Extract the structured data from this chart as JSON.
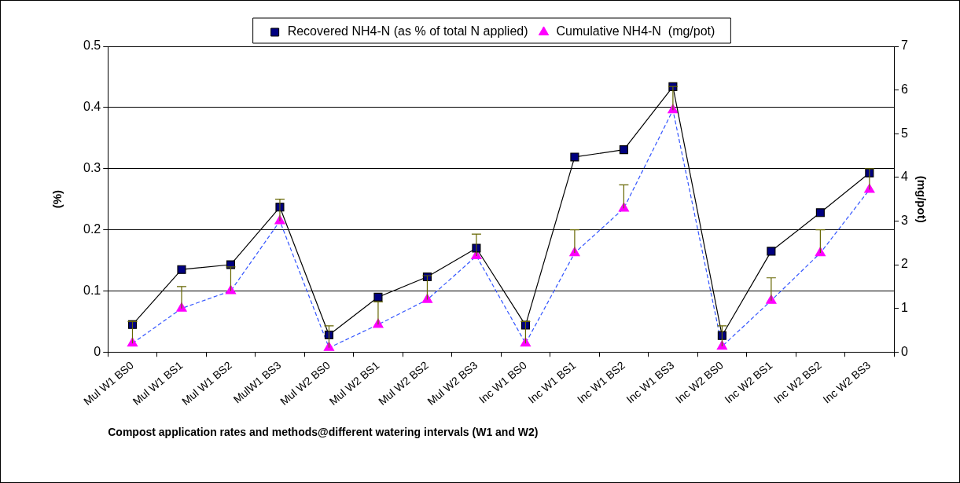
{
  "chart_data": {
    "type": "line",
    "xlabel": "Compost application rates and methods@different watering intervals (W1 and W2)",
    "ylabel": "(%)",
    "y2label": "(mg/pot)",
    "categories": [
      "Mul W1 BS0",
      "Mul W1 BS1",
      "Mul W1 BS2",
      "MulW1 BS3",
      "Mul W2 BS0",
      "Mul W2 BS1",
      "Mul W2 BS2",
      "Mul W2 BS3",
      "Inc W1 BS0",
      "Inc W1 BS1",
      "Inc W1 BS2",
      "Inc W1 BS3",
      "Inc W2 BS0",
      "Inc W2 BS1",
      "Inc W2 BS2",
      "Inc W2 BS3"
    ],
    "series": [
      {
        "name": "Recovered NH4-N (as % of total N applied)",
        "color": "#000080",
        "marker": "square",
        "line_style": "solid",
        "values": [
          0.045,
          0.135,
          0.143,
          0.237,
          0.028,
          0.09,
          0.123,
          0.17,
          0.044,
          0.319,
          0.331,
          0.434,
          0.027,
          0.165,
          0.228,
          0.293
        ]
      },
      {
        "name": "Cumulative NH4-N  (mg/pot)",
        "color": "#ff00ff",
        "marker": "triangle",
        "line_style": "dashed",
        "axis": "y2",
        "values": [
          0.2,
          1.0,
          1.4,
          3.0,
          0.1,
          0.63,
          1.2,
          2.2,
          0.2,
          2.27,
          3.29,
          5.54,
          0.13,
          1.18,
          2.27,
          3.72
        ],
        "errors": [
          [
            0.2,
            0.7
          ],
          [
            1.0,
            1.5
          ],
          [
            1.4,
            1.95
          ],
          [
            3.0,
            3.5
          ],
          [
            0.1,
            0.6
          ],
          [
            0.63,
            1.15
          ],
          [
            1.2,
            1.75
          ],
          [
            2.2,
            2.7
          ],
          [
            0.2,
            0.7
          ],
          [
            2.27,
            2.8
          ],
          [
            3.29,
            3.83
          ],
          [
            5.54,
            6.08
          ],
          [
            0.13,
            0.6
          ],
          [
            1.18,
            1.7
          ],
          [
            2.27,
            2.8
          ],
          [
            3.72,
            4.2
          ]
        ]
      }
    ],
    "ylim": [
      0,
      0.5
    ],
    "yticks": [
      0,
      0.1,
      0.2,
      0.3,
      0.4,
      0.5
    ],
    "y2lim": [
      0,
      7
    ],
    "y2ticks": [
      0,
      1,
      2,
      3,
      4,
      5,
      6,
      7
    ],
    "grid": "y",
    "legend": "top"
  }
}
